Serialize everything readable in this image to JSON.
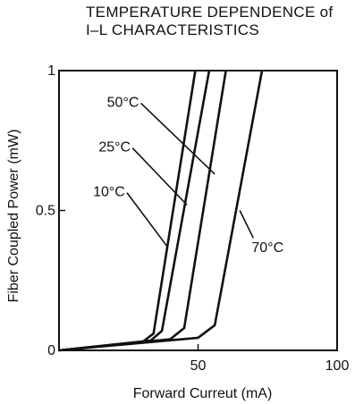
{
  "chart_data": {
    "type": "line",
    "title": [
      "TEMPERATURE DEPENDENCE of",
      "I–L CHARACTERISTICS"
    ],
    "xlabel": "Forward Curreut (mA)",
    "ylabel": "Fiber Coupled Power (mW)",
    "xlim": [
      0,
      100
    ],
    "ylim": [
      0,
      1
    ],
    "xticks": [
      {
        "value": 50,
        "label": "50"
      },
      {
        "value": 100,
        "label": "100"
      }
    ],
    "yticks": [
      {
        "value": 0,
        "label": "0"
      },
      {
        "value": 0.5,
        "label": "0.5"
      },
      {
        "value": 1,
        "label": "1"
      }
    ],
    "grid": false,
    "legend": "none",
    "series": [
      {
        "name": "10°C",
        "points": [
          [
            0,
            0
          ],
          [
            30,
            0.03
          ],
          [
            34,
            0.06
          ],
          [
            49,
            1.0
          ]
        ]
      },
      {
        "name": "25°C",
        "points": [
          [
            0,
            0
          ],
          [
            33,
            0.035
          ],
          [
            37,
            0.07
          ],
          [
            54,
            1.0
          ]
        ]
      },
      {
        "name": "50°C",
        "points": [
          [
            0,
            0
          ],
          [
            40,
            0.04
          ],
          [
            45,
            0.08
          ],
          [
            60,
            1.0
          ]
        ]
      },
      {
        "name": "70°C",
        "points": [
          [
            0,
            0
          ],
          [
            50,
            0.045
          ],
          [
            56,
            0.09
          ],
          [
            73,
            1.0
          ]
        ]
      }
    ],
    "annotations": [
      {
        "text": "10°C",
        "series": "10°C",
        "label_at": [
          18,
          0.57
        ],
        "points_to": [
          39,
          0.37
        ]
      },
      {
        "text": "25°C",
        "series": "25°C",
        "label_at": [
          20,
          0.73
        ],
        "points_to": [
          46,
          0.52
        ]
      },
      {
        "text": "50°C",
        "series": "50°C",
        "label_at": [
          23,
          0.89
        ],
        "points_to": [
          56,
          0.63
        ]
      },
      {
        "text": "70°C",
        "series": "70°C",
        "label_at": [
          75,
          0.37
        ],
        "points_to": [
          65,
          0.5
        ]
      }
    ]
  }
}
